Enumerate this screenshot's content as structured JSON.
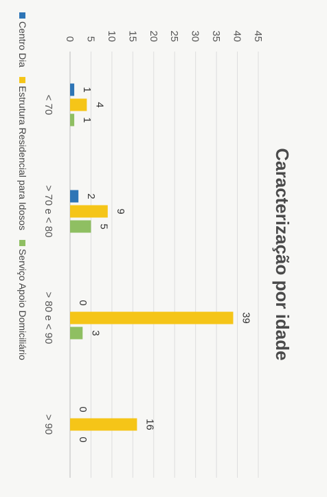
{
  "chart_data": {
    "type": "bar",
    "title": "Caracterização por idade",
    "categories": [
      "< 70",
      "> 70 e < 80",
      "> 80 e < 90",
      "> 90"
    ],
    "series": [
      {
        "name": "Centro Dia",
        "values": [
          1,
          2,
          0,
          0
        ],
        "color": "#2e75b6"
      },
      {
        "name": "Estrutura Residencial para Idosos",
        "values": [
          4,
          9,
          39,
          16
        ],
        "color": "#f5c518"
      },
      {
        "name": "Serviço Apoio Domiciliário",
        "values": [
          1,
          5,
          3,
          0
        ],
        "color": "#8fbf62"
      }
    ],
    "ylim": [
      0,
      45
    ],
    "yticks": [
      0,
      5,
      10,
      15,
      20,
      25,
      30,
      35,
      40,
      45
    ],
    "grid": true,
    "legend": "bottom",
    "orientation": "rotated 90° (page displayed sideways)"
  }
}
